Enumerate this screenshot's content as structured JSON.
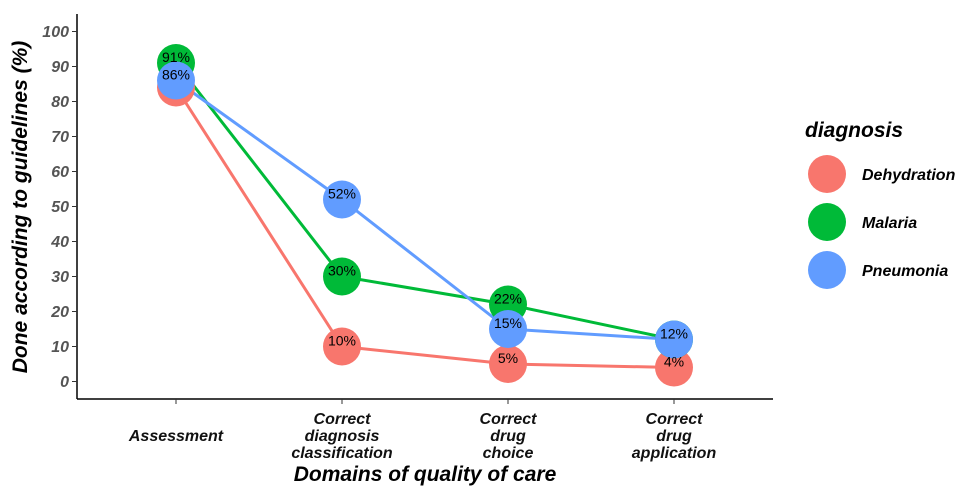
{
  "chart_data": {
    "type": "line",
    "title": "",
    "xlabel": "Domains of quality of care",
    "ylabel": "Done according to guidelines (%)",
    "ylim": [
      -5,
      105
    ],
    "yticks": [
      0,
      10,
      20,
      30,
      40,
      50,
      60,
      70,
      80,
      90,
      100
    ],
    "grid": false,
    "categories": [
      [
        "Assessment"
      ],
      [
        "Correct",
        "diagnosis",
        "classification"
      ],
      [
        "Correct",
        "drug",
        "choice"
      ],
      [
        "Correct",
        "drug",
        "application"
      ]
    ],
    "legend": {
      "title": "diagnosis",
      "placement": "right"
    },
    "series": [
      {
        "name": "Dehydration",
        "color": "#F8766D",
        "values": [
          84,
          10,
          5,
          4
        ],
        "labels": [
          "",
          "10%",
          "5%",
          "4%"
        ]
      },
      {
        "name": "Malaria",
        "color": "#00BA38",
        "values": [
          91,
          30,
          22,
          12
        ],
        "labels": [
          "91%",
          "30%",
          "22%",
          "12%"
        ]
      },
      {
        "name": "Pneumonia",
        "color": "#619CFF",
        "values": [
          86,
          52,
          15,
          12
        ],
        "labels": [
          "86%",
          "52%",
          "15%",
          ""
        ]
      }
    ]
  }
}
